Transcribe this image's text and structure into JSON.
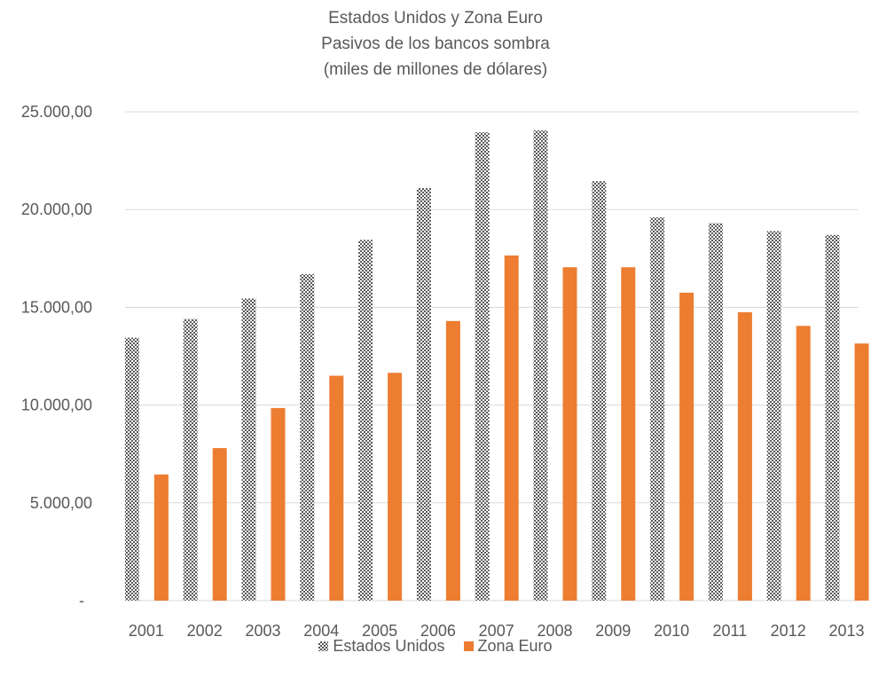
{
  "chart_data": {
    "type": "bar",
    "title_lines": [
      "Estados Unidos y Zona Euro",
      "Pasivos de los bancos sombra",
      "(miles de millones de dólares)"
    ],
    "categories": [
      "2001",
      "2002",
      "2003",
      "2004",
      "2005",
      "2006",
      "2007",
      "2008",
      "2009",
      "2010",
      "2011",
      "2012",
      "2013"
    ],
    "series": [
      {
        "name": "Estados Unidos",
        "color": "#7f7f7f",
        "pattern": "checkerboard",
        "values": [
          13450,
          14400,
          15450,
          16700,
          18450,
          21100,
          23950,
          24050,
          21450,
          19600,
          19300,
          18900,
          18700
        ]
      },
      {
        "name": "Zona Euro",
        "color": "#ed7d31",
        "values": [
          6450,
          7800,
          9850,
          11500,
          11650,
          14300,
          17650,
          17050,
          17050,
          15750,
          14750,
          14050,
          13150
        ]
      }
    ],
    "ylim": [
      0,
      25000
    ],
    "yticks": [
      0,
      5000,
      10000,
      15000,
      20000,
      25000
    ],
    "ytick_labels": [
      "-",
      "5.000,00",
      "10.000,00",
      "15.000,00",
      "20.000,00",
      "25.000,00"
    ],
    "grid": true,
    "legend_position": "bottom"
  }
}
